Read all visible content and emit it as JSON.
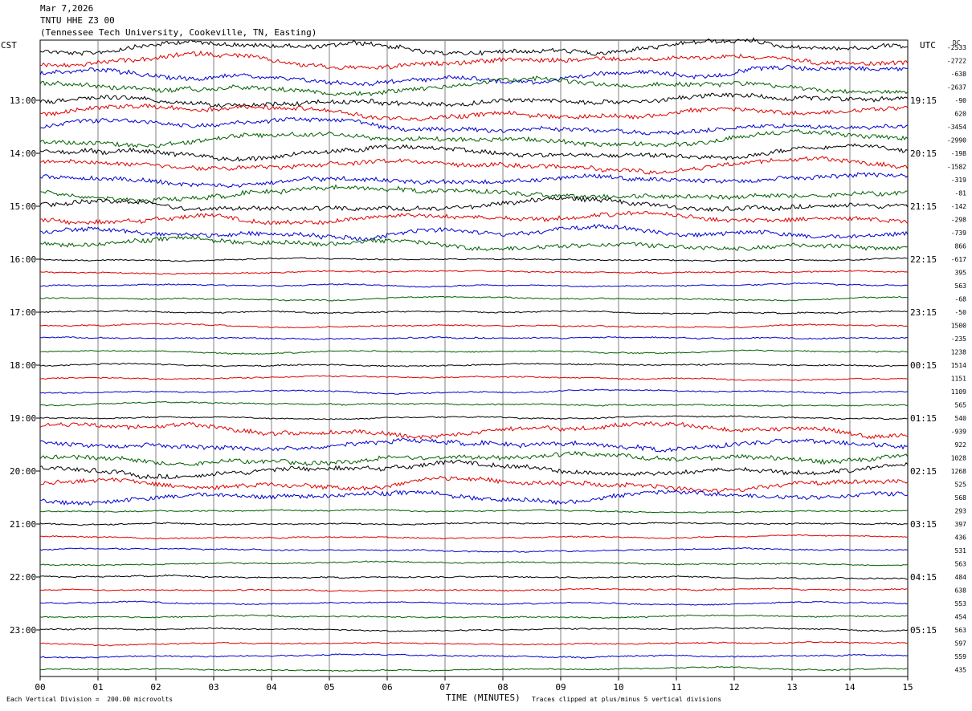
{
  "header": {
    "date": "Mar 7,2026",
    "station": "TNTU HHE Z3 00",
    "location": "(Tennessee Tech University, Cookeville, TN, Easting)"
  },
  "labels": {
    "left_tz": "CST",
    "right_tz": "UTC",
    "dc": "DC",
    "xlabel": "TIME (MINUTES)",
    "footer_left": "Each Vertical Division =  200.00 microvolts",
    "footer_right": "Traces clipped at plus/minus 5 vertical divisions"
  },
  "chart_data": {
    "type": "line",
    "xlim": [
      0,
      15
    ],
    "x_ticks": [
      "00",
      "01",
      "02",
      "03",
      "04",
      "05",
      "06",
      "07",
      "08",
      "09",
      "10",
      "11",
      "12",
      "13",
      "14",
      "15"
    ],
    "left_time_labels": [
      "13:00",
      "14:00",
      "15:00",
      "16:00",
      "17:00",
      "18:00",
      "19:00",
      "20:00",
      "21:00",
      "22:00",
      "23:00"
    ],
    "right_time_labels": [
      "19:15",
      "20:15",
      "21:15",
      "22:15",
      "23:15",
      "00:15",
      "01:15",
      "02:15",
      "03:15",
      "04:15",
      "05:15"
    ],
    "trace_colors": [
      "#000000",
      "#e00000",
      "#0000d0",
      "#006000"
    ],
    "dc_offsets": [
      "-2533",
      "-2722",
      "-638",
      "-2637",
      "-90",
      "620",
      "-3454",
      "-2990",
      "-198",
      "-1582",
      "-319",
      "-81",
      "-142",
      "-298",
      "-739",
      "866",
      "-617",
      "395",
      "563",
      "-68",
      "-50",
      "1500",
      "-235",
      "1238",
      "1514",
      "1151",
      "1109",
      "565",
      "540",
      "-939",
      "922",
      "1028",
      "1268",
      "525",
      "568",
      "293",
      "397",
      "436",
      "531",
      "563",
      "484",
      "638",
      "553",
      "454",
      "563",
      "597",
      "559",
      "435"
    ]
  }
}
